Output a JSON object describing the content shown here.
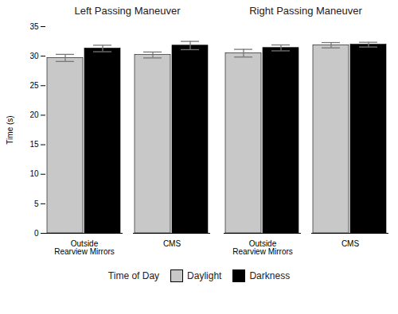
{
  "chart_data": [
    {
      "type": "bar",
      "title": "Left Passing Maneuver",
      "categories": [
        "Outside\nRearview Mirrors",
        "CMS"
      ],
      "series": [
        {
          "name": "Daylight",
          "color": "#c8c8c8",
          "values": [
            29.7,
            30.2
          ],
          "errors": [
            0.6,
            0.5
          ]
        },
        {
          "name": "Darkness",
          "color": "#000000",
          "values": [
            31.3,
            31.8
          ],
          "errors": [
            0.55,
            0.7
          ]
        }
      ],
      "ylabel": "Time (s)",
      "ylim": [
        0,
        35
      ],
      "yticks": [
        0,
        5,
        10,
        15,
        20,
        25,
        30,
        35
      ],
      "grid": false,
      "legend": "bottom",
      "legend_title": "Time of Day"
    },
    {
      "type": "bar",
      "title": "Right Passing Maneuver",
      "categories": [
        "Outside\nRearview Mirrors",
        "CMS"
      ],
      "series": [
        {
          "name": "Daylight",
          "color": "#c8c8c8",
          "values": [
            30.5,
            31.85
          ],
          "errors": [
            0.65,
            0.45
          ]
        },
        {
          "name": "Darkness",
          "color": "#000000",
          "values": [
            31.4,
            31.95
          ],
          "errors": [
            0.5,
            0.4
          ]
        }
      ],
      "ylim": [
        0,
        35
      ],
      "yticks": [
        0,
        5,
        10,
        15,
        20,
        25,
        30,
        35
      ],
      "grid": false,
      "tick_labels": "x"
    }
  ]
}
